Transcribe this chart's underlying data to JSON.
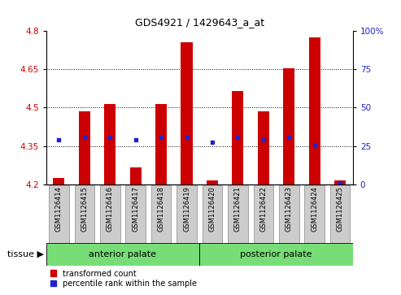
{
  "title": "GDS4921 / 1429643_a_at",
  "samples": [
    "GSM1126414",
    "GSM1126415",
    "GSM1126416",
    "GSM1126417",
    "GSM1126418",
    "GSM1126419",
    "GSM1126420",
    "GSM1126421",
    "GSM1126422",
    "GSM1126423",
    "GSM1126424",
    "GSM1126425"
  ],
  "transformed_count": [
    4.225,
    4.485,
    4.515,
    4.265,
    4.515,
    4.755,
    4.215,
    4.565,
    4.485,
    4.655,
    4.775,
    4.215
  ],
  "percentile_rank_val": [
    4.375,
    4.383,
    4.383,
    4.375,
    4.383,
    4.383,
    4.365,
    4.383,
    4.375,
    4.383,
    4.353,
    4.205
  ],
  "ymin": 4.2,
  "ymax": 4.8,
  "yticks_left": [
    4.2,
    4.35,
    4.5,
    4.65,
    4.8
  ],
  "ytick_labels_left": [
    "4.2",
    "4.35",
    "4.5",
    "4.65",
    "4.8"
  ],
  "right_pct": [
    0,
    25,
    50,
    75,
    100
  ],
  "bar_color": "#cc0000",
  "dot_color": "#2222cc",
  "bar_width": 0.45,
  "grid_dotted_at": [
    4.35,
    4.5,
    4.65
  ],
  "title_fontsize": 9,
  "tick_fontsize": 7.5,
  "sample_fontsize": 6.0,
  "group_fontsize": 8,
  "legend_fontsize": 7,
  "tick_color_left": "#cc0000",
  "tick_color_right": "#2222cc",
  "group_labels": [
    "anterior palate",
    "posterior palate"
  ],
  "group_color": "#77dd77",
  "group_split": 6,
  "tissue_label": "tissue",
  "legend_labels": [
    "transformed count",
    "percentile rank within the sample"
  ],
  "xlabel_box_color": "#cccccc",
  "xlabel_box_edge": "#999999"
}
